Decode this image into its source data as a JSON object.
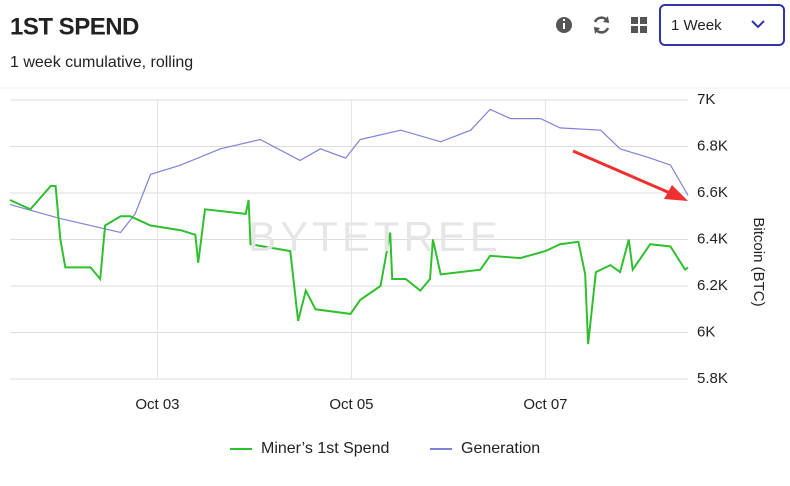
{
  "header": {
    "title": "1ST SPEND",
    "subtitle": "1 week cumulative, rolling",
    "period": "1 Week"
  },
  "chart_data": {
    "type": "line",
    "watermark": "BYTETREE",
    "y_label": "Bitcoin (BTC)",
    "xlim": [
      1.48,
      8.47
    ],
    "xticks": [
      {
        "value": 3,
        "label": "Oct 03"
      },
      {
        "value": 5,
        "label": "Oct 05"
      },
      {
        "value": 7,
        "label": "Oct 07"
      }
    ],
    "ylim": [
      5800,
      7000
    ],
    "yticks": [
      {
        "value": 5800,
        "label": "5.8K"
      },
      {
        "value": 6000,
        "label": "6K"
      },
      {
        "value": 6200,
        "label": "6.2K"
      },
      {
        "value": 6400,
        "label": "6.4K"
      },
      {
        "value": 6600,
        "label": "6.6K"
      },
      {
        "value": 6800,
        "label": "6.8K"
      },
      {
        "value": 7000,
        "label": "7K"
      }
    ],
    "grid": true,
    "series": [
      {
        "name": "Miner’s 1st Spend",
        "color": "#2fbf2f",
        "x": [
          1.48,
          1.69,
          1.9,
          1.95,
          2.0,
          2.05,
          2.31,
          2.41,
          2.46,
          2.62,
          2.72,
          2.93,
          3.24,
          3.39,
          3.42,
          3.49,
          3.91,
          3.94,
          3.96,
          4.37,
          4.45,
          4.53,
          4.63,
          4.99,
          5.09,
          5.3,
          5.4,
          5.42,
          5.56,
          5.71,
          5.81,
          5.84,
          5.92,
          6.33,
          6.43,
          6.74,
          7.0,
          7.15,
          7.34,
          7.41,
          7.44,
          7.52,
          7.67,
          7.77,
          7.86,
          7.9,
          8.08,
          8.29,
          8.44,
          8.47
        ],
        "values": [
          6570,
          6530,
          6630,
          6630,
          6400,
          6280,
          6280,
          6230,
          6460,
          6500,
          6500,
          6460,
          6440,
          6420,
          6300,
          6530,
          6510,
          6570,
          6380,
          6350,
          6050,
          6180,
          6100,
          6080,
          6140,
          6200,
          6430,
          6230,
          6230,
          6180,
          6230,
          6400,
          6250,
          6270,
          6330,
          6320,
          6350,
          6380,
          6390,
          6250,
          5950,
          6260,
          6290,
          6260,
          6400,
          6270,
          6380,
          6370,
          6270,
          6280
        ]
      },
      {
        "name": "Generation",
        "color": "#7f83d6",
        "x": [
          1.48,
          2.0,
          2.62,
          2.77,
          2.93,
          3.24,
          3.65,
          4.06,
          4.47,
          4.68,
          4.94,
          5.09,
          5.51,
          5.92,
          6.23,
          6.43,
          6.64,
          6.95,
          7.15,
          7.57,
          7.77,
          8.08,
          8.29,
          8.47
        ],
        "values": [
          6550,
          6490,
          6430,
          6510,
          6680,
          6720,
          6790,
          6830,
          6740,
          6790,
          6750,
          6830,
          6870,
          6820,
          6870,
          6960,
          6920,
          6920,
          6880,
          6870,
          6790,
          6750,
          6720,
          6590
        ]
      }
    ]
  }
}
